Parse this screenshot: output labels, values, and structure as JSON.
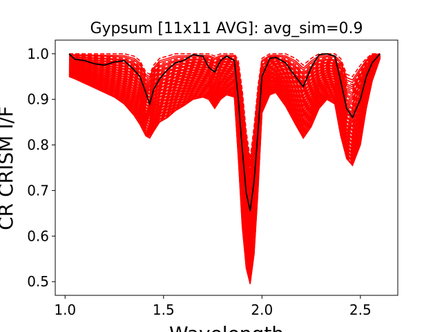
{
  "chart_data": {
    "type": "line",
    "title": "Gypsum [11x11 AVG]: avg_sim=0.9",
    "xlabel": "Wavelength",
    "ylabel": "CR CRISM I/F",
    "xlim": [
      0.95,
      2.69
    ],
    "ylim": [
      0.47,
      1.03
    ],
    "xticks": [
      1.0,
      1.5,
      2.0,
      2.5
    ],
    "xtick_labels": [
      "1.0",
      "1.5",
      "2.0",
      "2.5"
    ],
    "yticks": [
      0.5,
      0.6,
      0.7,
      0.8,
      0.9,
      1.0
    ],
    "ytick_labels": [
      "0.5",
      "0.6",
      "0.7",
      "0.8",
      "0.9",
      "1.0"
    ],
    "grid": false,
    "colors": {
      "spectra": "#ff0000",
      "average": "#000000"
    },
    "average_spectrum": {
      "x": [
        1.02,
        1.05,
        1.1,
        1.15,
        1.2,
        1.25,
        1.3,
        1.35,
        1.38,
        1.41,
        1.43,
        1.45,
        1.48,
        1.52,
        1.56,
        1.6,
        1.65,
        1.7,
        1.73,
        1.76,
        1.79,
        1.82,
        1.86,
        1.88,
        1.9,
        1.92,
        1.94,
        1.96,
        1.98,
        2.0,
        2.04,
        2.07,
        2.12,
        2.17,
        2.21,
        2.25,
        2.29,
        2.33,
        2.37,
        2.4,
        2.43,
        2.46,
        2.5,
        2.53,
        2.56,
        2.6
      ],
      "y": [
        1.0,
        0.988,
        0.985,
        0.978,
        0.975,
        0.982,
        0.985,
        0.965,
        0.95,
        0.915,
        0.89,
        0.922,
        0.945,
        0.965,
        0.98,
        0.985,
        0.998,
        0.995,
        0.97,
        0.96,
        0.985,
        0.995,
        0.985,
        0.9,
        0.79,
        0.695,
        0.655,
        0.72,
        0.83,
        0.95,
        0.99,
        0.992,
        0.98,
        0.95,
        0.928,
        0.97,
        0.998,
        1.0,
        0.995,
        0.94,
        0.88,
        0.86,
        0.9,
        0.95,
        0.98,
        1.0
      ]
    },
    "spectra_envelope": {
      "x": [
        1.02,
        1.05,
        1.1,
        1.15,
        1.2,
        1.25,
        1.3,
        1.35,
        1.38,
        1.41,
        1.43,
        1.45,
        1.48,
        1.52,
        1.56,
        1.6,
        1.65,
        1.7,
        1.73,
        1.76,
        1.79,
        1.82,
        1.86,
        1.88,
        1.9,
        1.92,
        1.94,
        1.96,
        1.98,
        2.0,
        2.04,
        2.07,
        2.12,
        2.17,
        2.21,
        2.25,
        2.29,
        2.33,
        2.37,
        2.4,
        2.43,
        2.46,
        2.5,
        2.53,
        2.56,
        2.6
      ],
      "upper": [
        1.0,
        1.0,
        1.0,
        1.0,
        1.0,
        1.0,
        1.0,
        0.995,
        0.985,
        0.96,
        0.955,
        0.975,
        0.99,
        0.995,
        1.0,
        1.0,
        1.0,
        1.0,
        1.0,
        0.995,
        1.0,
        1.0,
        1.0,
        0.985,
        0.92,
        0.83,
        0.77,
        0.84,
        0.93,
        0.99,
        1.0,
        1.0,
        1.0,
        0.99,
        0.975,
        0.99,
        1.0,
        1.0,
        1.0,
        0.99,
        0.955,
        0.95,
        0.975,
        0.99,
        1.0,
        1.0
      ],
      "lower": [
        0.95,
        0.945,
        0.935,
        0.925,
        0.915,
        0.905,
        0.89,
        0.865,
        0.845,
        0.82,
        0.815,
        0.83,
        0.85,
        0.86,
        0.875,
        0.885,
        0.9,
        0.905,
        0.9,
        0.88,
        0.9,
        0.91,
        0.905,
        0.77,
        0.62,
        0.53,
        0.495,
        0.56,
        0.7,
        0.87,
        0.91,
        0.915,
        0.885,
        0.845,
        0.815,
        0.84,
        0.88,
        0.9,
        0.89,
        0.82,
        0.77,
        0.755,
        0.8,
        0.88,
        0.94,
        0.99
      ]
    }
  }
}
